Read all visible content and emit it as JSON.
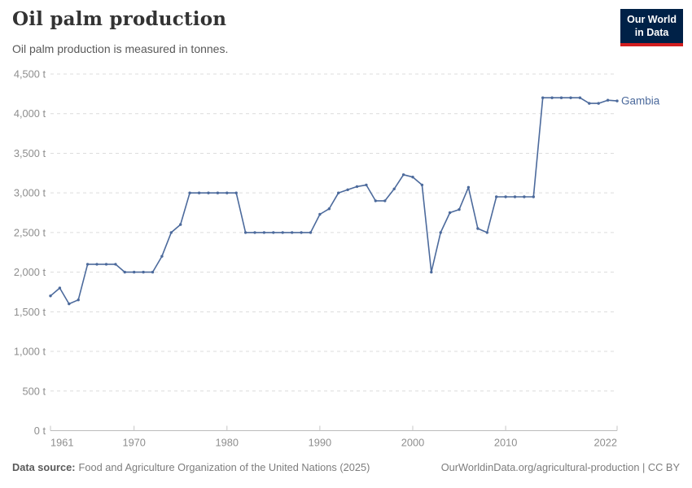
{
  "header": {
    "title": "Oil palm production",
    "subtitle": "Oil palm production is measured in tonnes."
  },
  "logo": {
    "line1": "Our World",
    "line2": "in Data",
    "bg_color": "#002147",
    "accent_color": "#d21e1f"
  },
  "chart_data": {
    "type": "line",
    "title": "Oil palm production",
    "unit": "tonnes",
    "entity": "Gambia",
    "ylim": [
      0,
      4500
    ],
    "ytick_step": 500,
    "ytick_labels": [
      "0 t",
      "500 t",
      "1,000 t",
      "1,500 t",
      "2,000 t",
      "2,500 t",
      "3,000 t",
      "3,500 t",
      "4,000 t",
      "4,500 t"
    ],
    "xticks": [
      1961,
      1970,
      1980,
      1990,
      2000,
      2010,
      2022
    ],
    "grid": "horizontal-dashed",
    "legend_position": "end-of-line-label",
    "x": [
      1961,
      1962,
      1963,
      1964,
      1965,
      1966,
      1967,
      1968,
      1969,
      1970,
      1971,
      1972,
      1973,
      1974,
      1975,
      1976,
      1977,
      1978,
      1979,
      1980,
      1981,
      1982,
      1983,
      1984,
      1985,
      1986,
      1987,
      1988,
      1989,
      1990,
      1991,
      1992,
      1993,
      1994,
      1995,
      1996,
      1997,
      1998,
      1999,
      2000,
      2001,
      2002,
      2003,
      2004,
      2005,
      2006,
      2007,
      2008,
      2009,
      2010,
      2011,
      2012,
      2013,
      2014,
      2015,
      2016,
      2017,
      2018,
      2019,
      2020,
      2021,
      2022
    ],
    "series": [
      {
        "name": "Gambia",
        "color": "#4c6a9c",
        "values": [
          1700,
          1800,
          1600,
          1650,
          2100,
          2100,
          2100,
          2100,
          2000,
          2000,
          2000,
          2000,
          2200,
          2500,
          2600,
          3000,
          3000,
          3000,
          3000,
          3000,
          3000,
          2500,
          2500,
          2500,
          2500,
          2500,
          2500,
          2500,
          2500,
          2730,
          2800,
          3000,
          3040,
          3080,
          3100,
          2900,
          2900,
          3050,
          3230,
          3200,
          3100,
          2000,
          2500,
          2750,
          2790,
          3070,
          2550,
          2500,
          2950,
          2950,
          2950,
          2950,
          2950,
          4200,
          4200,
          4200,
          4200,
          4200,
          4130,
          4130,
          4170,
          4160
        ]
      }
    ]
  },
  "footer": {
    "source_label": "Data source:",
    "source_text": "Food and Agriculture Organization of the United Nations (2025)",
    "link_text": "OurWorldinData.org/agricultural-production | CC BY"
  }
}
